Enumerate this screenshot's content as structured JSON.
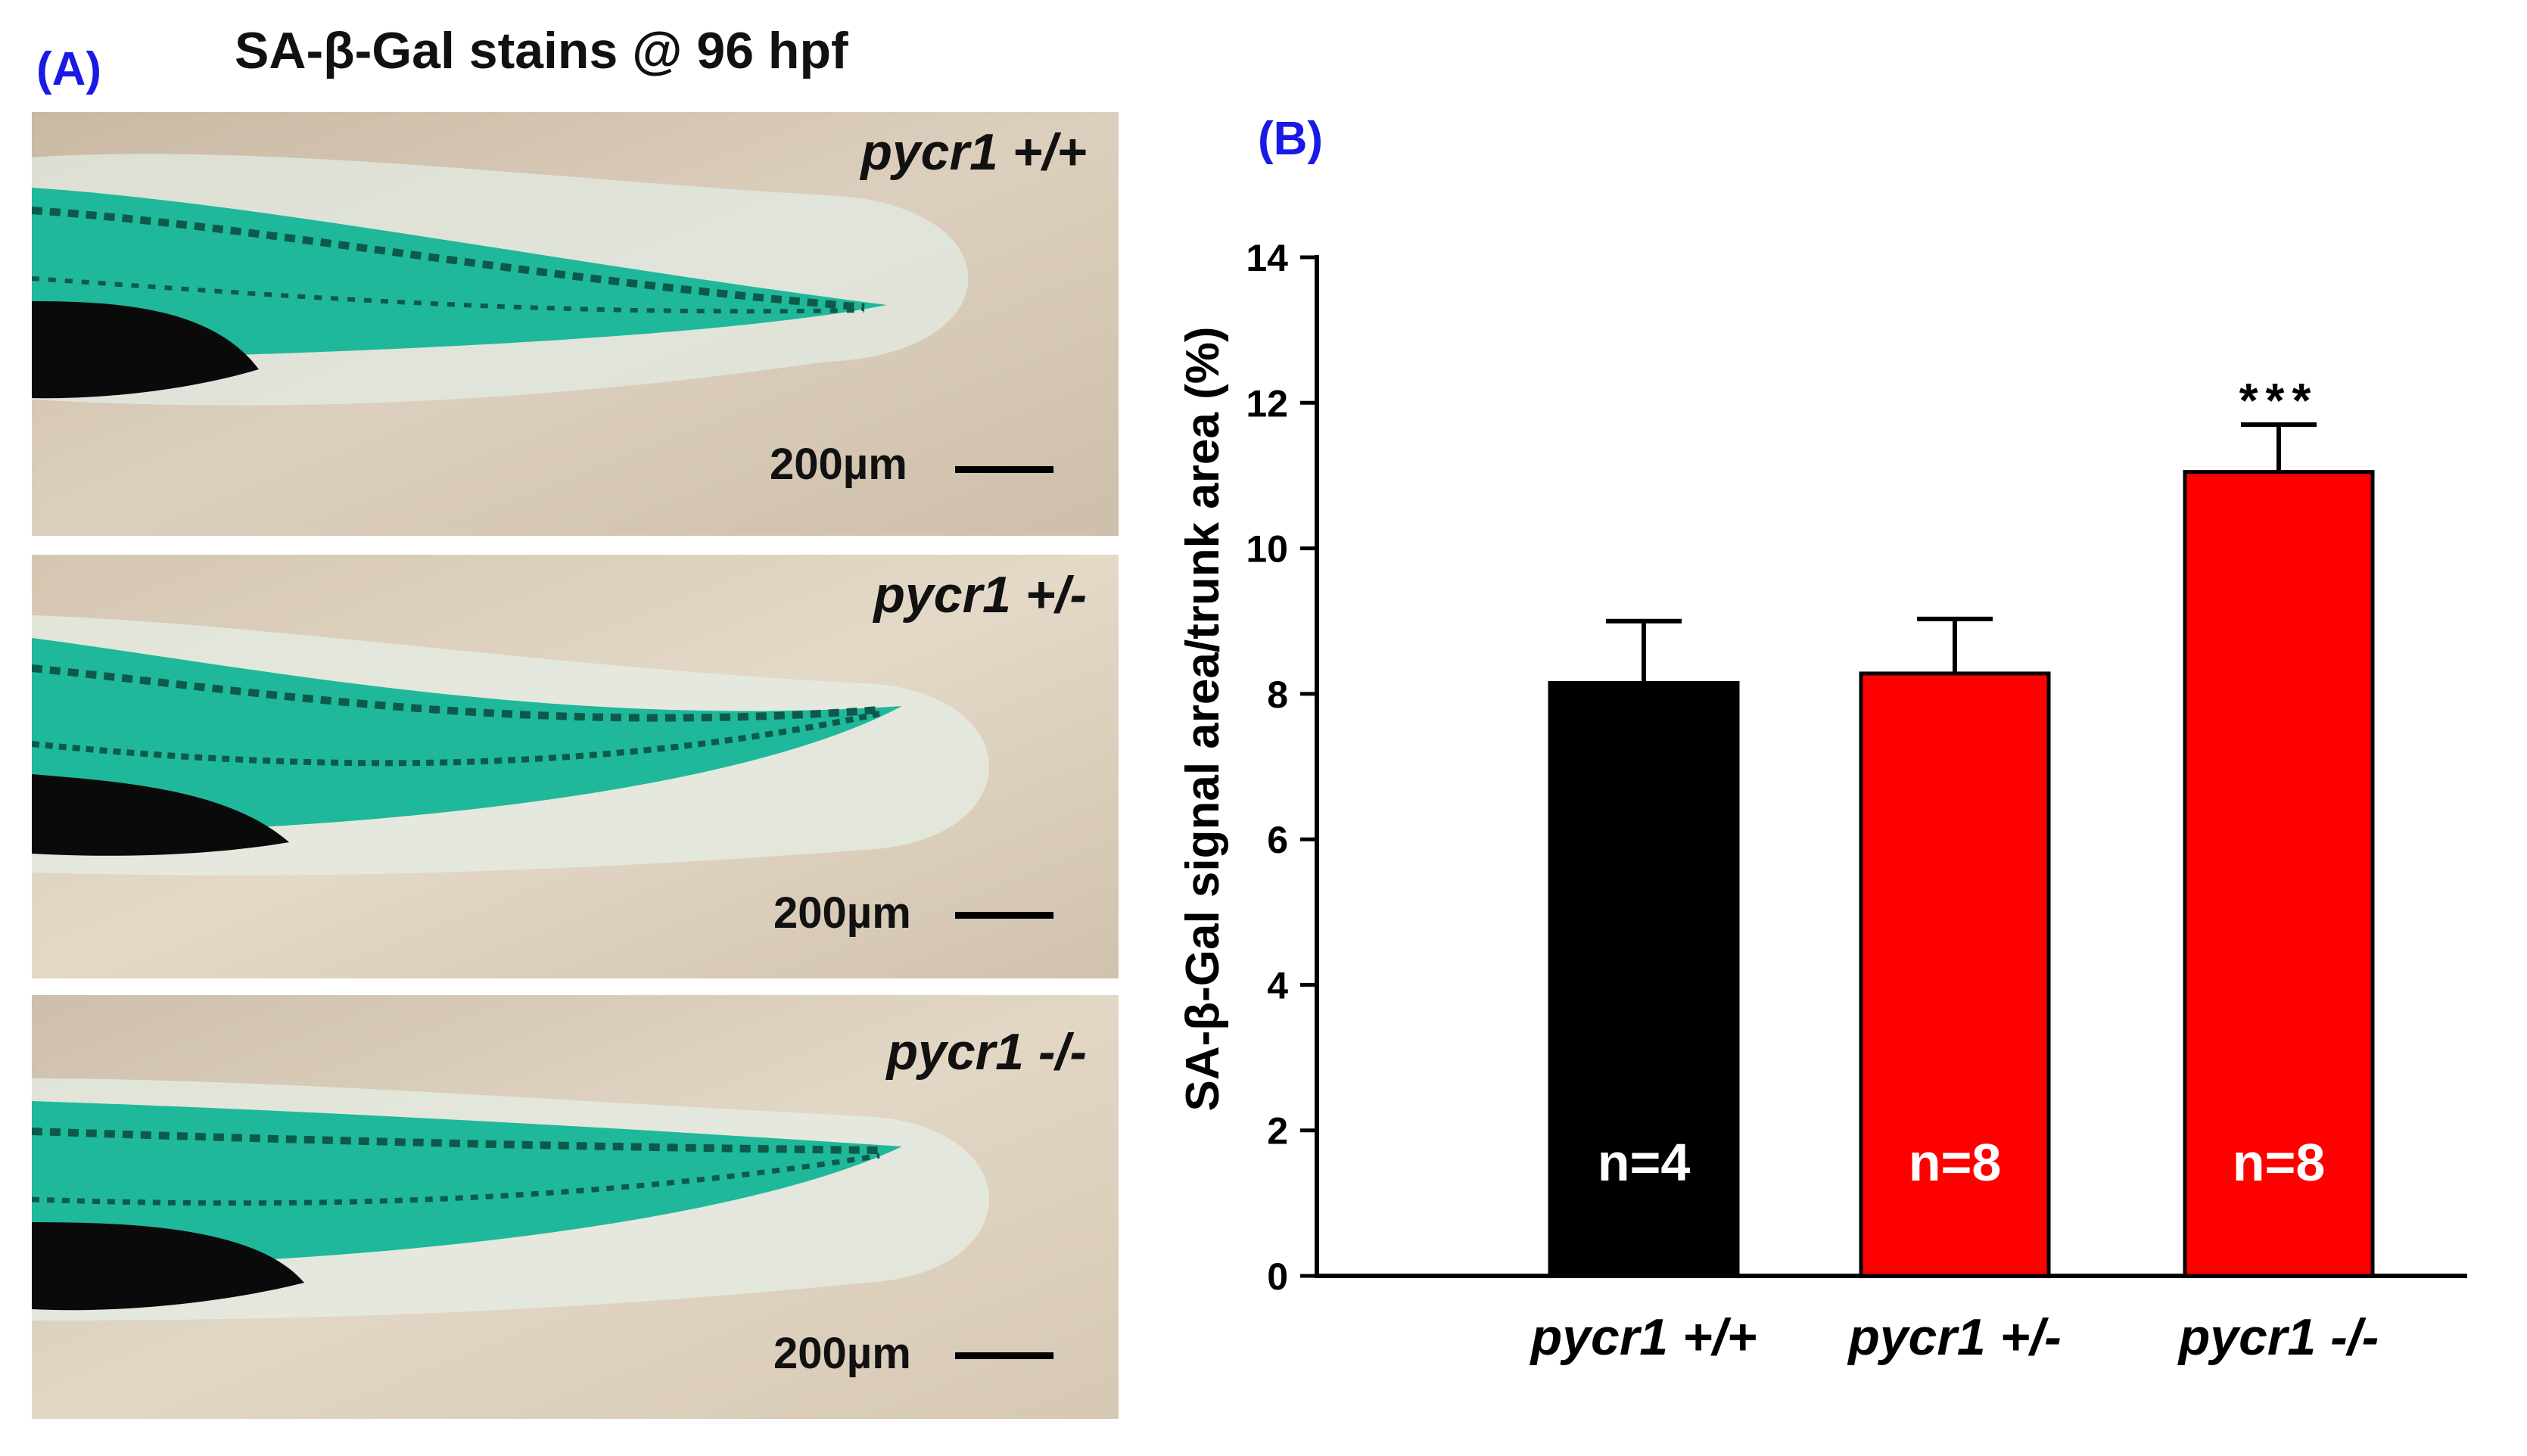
{
  "panel_a": {
    "label": "(A)",
    "title": "SA-β-Gal stains @ 96 hpf",
    "images": [
      {
        "genotype": "pycr1 +/+",
        "scale_label": "200µm"
      },
      {
        "genotype": "pycr1 +/-",
        "scale_label": "200µm"
      },
      {
        "genotype": "pycr1 -/-",
        "scale_label": "200µm"
      }
    ]
  },
  "panel_b": {
    "label": "(B)"
  },
  "colors": {
    "panel_label": "#1a1ae6",
    "bar_wildtype": "#000000",
    "bar_mutant": "#ff0000",
    "stain": "#1fb89a",
    "photo_bg": "#d8cbb6"
  },
  "chart_data": {
    "type": "bar",
    "title": "",
    "xlabel": "",
    "ylabel": "SA-β-Gal signal area/trunk area (%)",
    "ylim": [
      0,
      14
    ],
    "yticks": [
      0,
      2,
      4,
      6,
      8,
      10,
      12,
      14
    ],
    "categories": [
      "pycr1 +/+",
      "pycr1 +/-",
      "pycr1 -/-"
    ],
    "values": [
      8.15,
      8.28,
      11.05
    ],
    "errors": [
      0.85,
      0.75,
      0.65
    ],
    "bar_colors": [
      "#000000",
      "#ff0000",
      "#ff0000"
    ],
    "n_labels": [
      "n=4",
      "n=8",
      "n=8"
    ],
    "annotations": [
      "",
      "",
      "***"
    ]
  }
}
